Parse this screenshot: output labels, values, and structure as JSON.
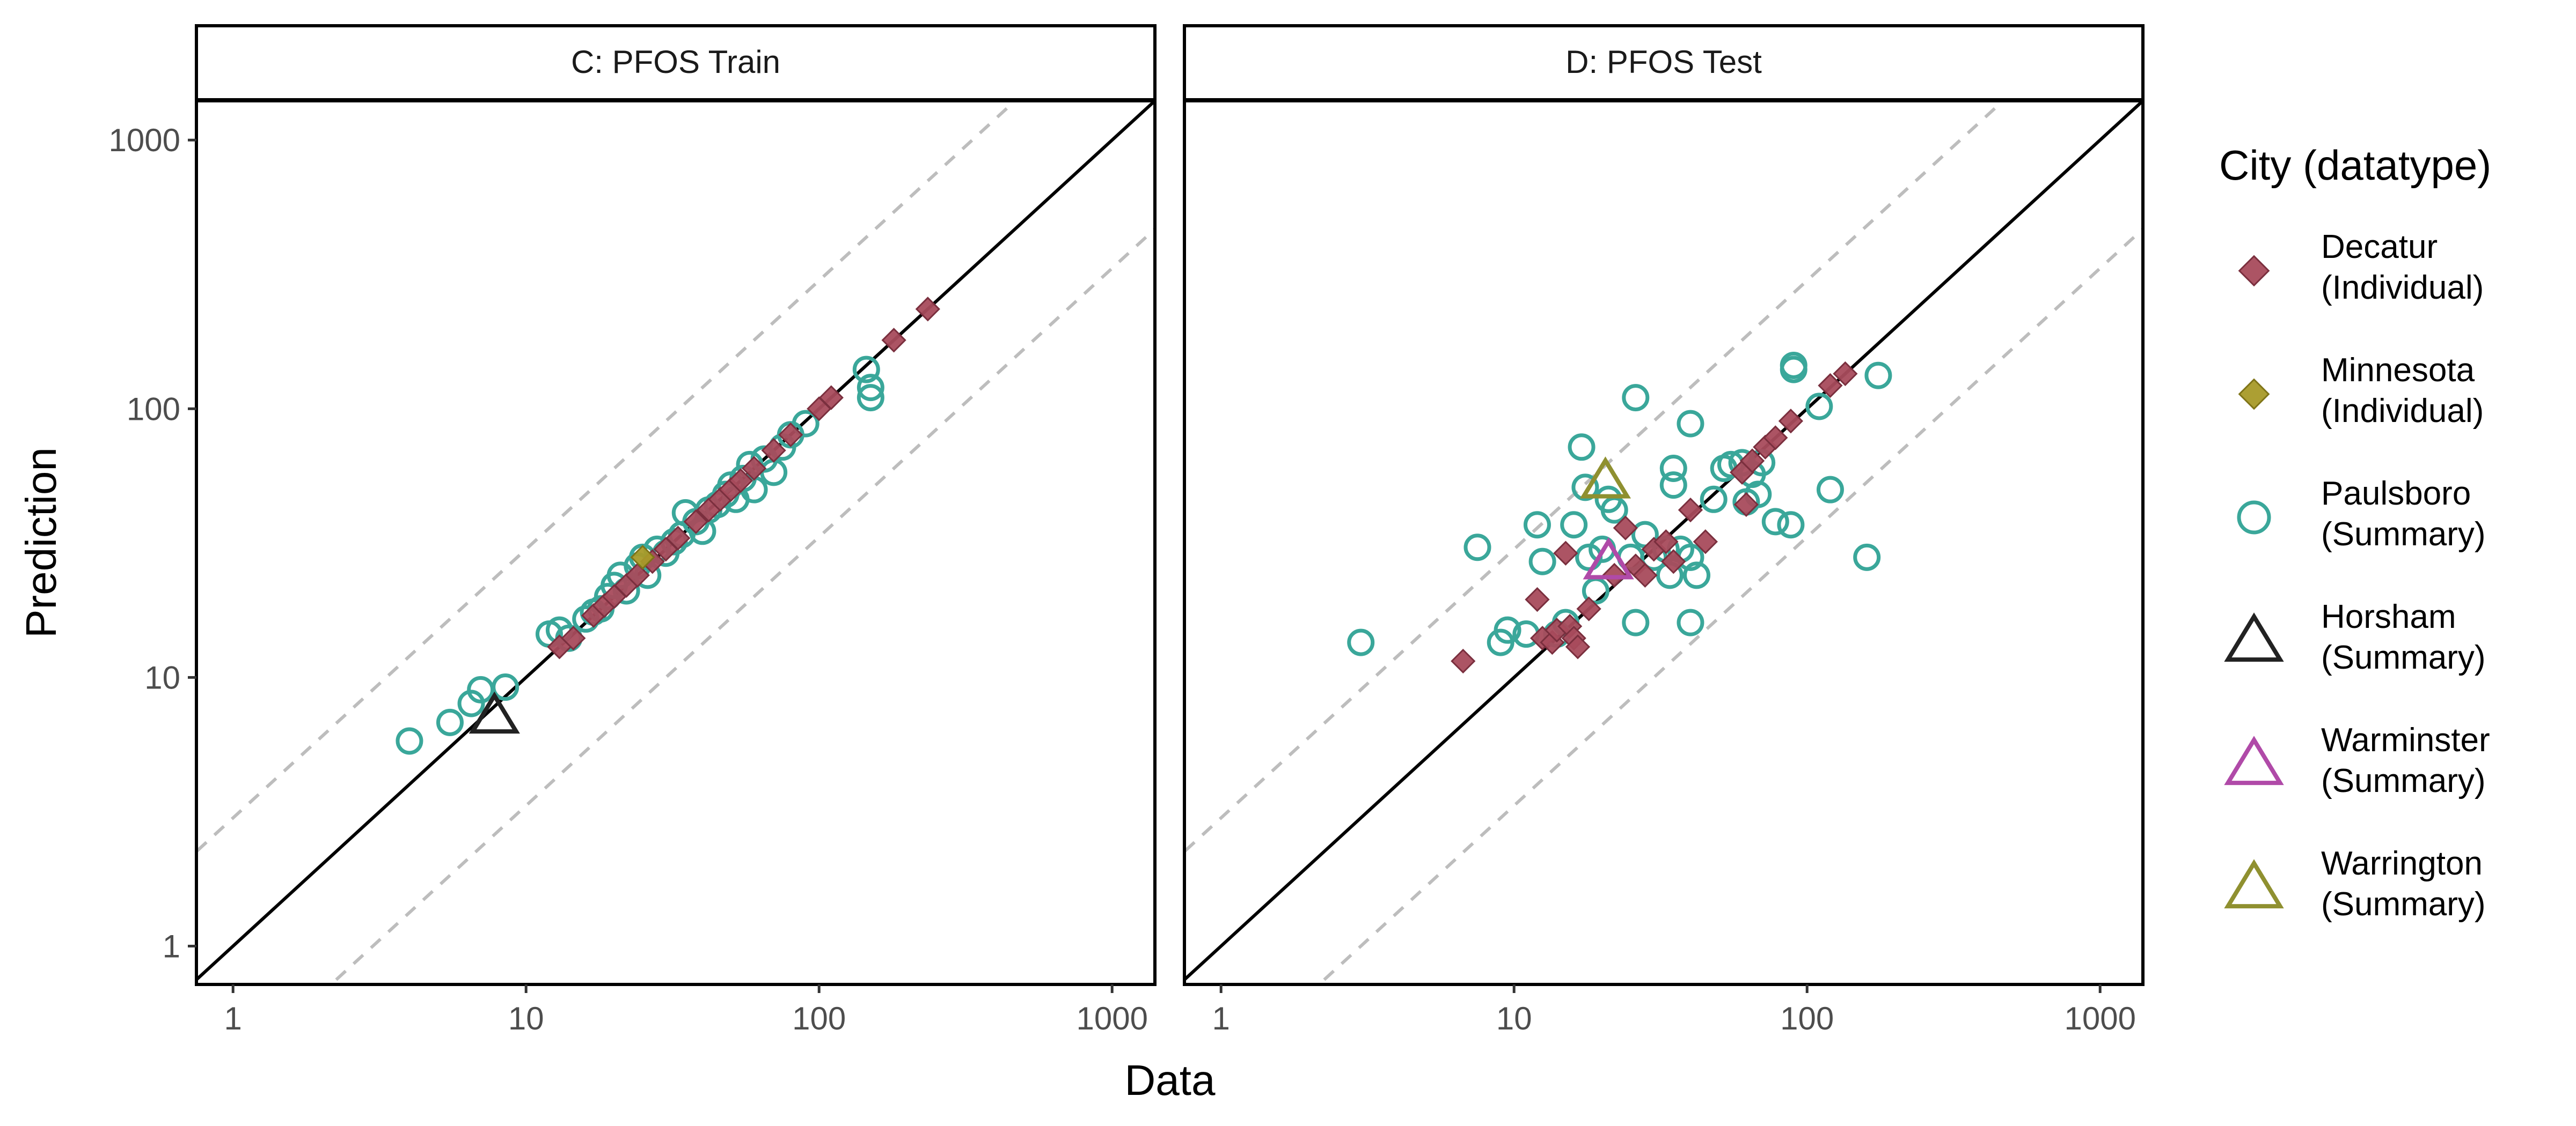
{
  "chart_data": {
    "type": "scatter",
    "xlabel": "Data",
    "ylabel": "Prediction",
    "xscale": "log10",
    "yscale": "log10",
    "xlim": [
      0.75,
      1400
    ],
    "ylim": [
      0.72,
      1400
    ],
    "x_ticks": [
      "1",
      "10",
      "100",
      "1000"
    ],
    "y_ticks": [
      "1",
      "10",
      "100",
      "1000"
    ],
    "reference_lines": [
      {
        "style": "solid",
        "color": "#000000",
        "factor": 1
      },
      {
        "style": "dashed",
        "color": "#bdbdbd",
        "factor": 3
      },
      {
        "style": "dashed",
        "color": "#bdbdbd",
        "factor": 0.3333
      }
    ],
    "legend": {
      "title": "City (datatype)",
      "position": "right",
      "entries": [
        {
          "key": "decatur",
          "label_line1": "Decatur",
          "label_line2": "(Individual)",
          "shape": "diamond",
          "color": "#a84b5c"
        },
        {
          "key": "minnesota",
          "label_line1": "Minnesota",
          "label_line2": "(Individual)",
          "shape": "diamond",
          "color": "#a89a28"
        },
        {
          "key": "paulsboro",
          "label_line1": "Paulsboro",
          "label_line2": "(Summary)",
          "shape": "circle",
          "color": "#3aa79a"
        },
        {
          "key": "horsham",
          "label_line1": "Horsham",
          "label_line2": "(Summary)",
          "shape": "triangle",
          "color": "#222222"
        },
        {
          "key": "warminster",
          "label_line1": "Warminster",
          "label_line2": "(Summary)",
          "shape": "triangle",
          "color": "#b04aa8"
        },
        {
          "key": "warrington",
          "label_line1": "Warrington",
          "label_line2": "(Summary)",
          "shape": "triangle",
          "color": "#8f9030"
        }
      ]
    },
    "panels": [
      {
        "title": "C: PFOS Train",
        "series": [
          {
            "key": "paulsboro",
            "points": [
              [
                4.0,
                5.8
              ],
              [
                5.5,
                6.8
              ],
              [
                6.5,
                8.0
              ],
              [
                7.0,
                9.0
              ],
              [
                8.5,
                9.2
              ],
              [
                12.0,
                14.5
              ],
              [
                13.0,
                15.0
              ],
              [
                14.0,
                14.0
              ],
              [
                16.0,
                16.5
              ],
              [
                17.0,
                17.5
              ],
              [
                18.0,
                18.0
              ],
              [
                19.0,
                20.0
              ],
              [
                20.0,
                22.0
              ],
              [
                21.0,
                24.0
              ],
              [
                22.0,
                21.0
              ],
              [
                24.0,
                26.0
              ],
              [
                25.0,
                28.0
              ],
              [
                26.0,
                24.0
              ],
              [
                28.0,
                30.0
              ],
              [
                30.0,
                29.0
              ],
              [
                32.0,
                32.0
              ],
              [
                34.0,
                34.0
              ],
              [
                35.0,
                41.0
              ],
              [
                38.0,
                38.0
              ],
              [
                40.0,
                35.0
              ],
              [
                42.0,
                42.0
              ],
              [
                45.0,
                44.0
              ],
              [
                48.0,
                48.0
              ],
              [
                50.0,
                52.0
              ],
              [
                52.0,
                46.0
              ],
              [
                55.0,
                55.0
              ],
              [
                58.0,
                62.0
              ],
              [
                60.0,
                50.0
              ],
              [
                65.0,
                65.0
              ],
              [
                70.0,
                58.0
              ],
              [
                75.0,
                72.0
              ],
              [
                80.0,
                80.0
              ],
              [
                90.0,
                88.0
              ],
              [
                145.0,
                140.0
              ],
              [
                150.0,
                120.0
              ],
              [
                150.0,
                110.0
              ]
            ]
          },
          {
            "key": "decatur",
            "points": [
              [
                13.0,
                13.0
              ],
              [
                14.5,
                14.0
              ],
              [
                17.0,
                17.0
              ],
              [
                18.5,
                18.5
              ],
              [
                20.0,
                20.0
              ],
              [
                22.0,
                22.0
              ],
              [
                24.0,
                24.0
              ],
              [
                27.0,
                27.0
              ],
              [
                30.0,
                30.0
              ],
              [
                33.0,
                33.0
              ],
              [
                38.0,
                38.0
              ],
              [
                42.0,
                42.0
              ],
              [
                46.0,
                46.0
              ],
              [
                50.0,
                50.0
              ],
              [
                54.0,
                54.0
              ],
              [
                60.0,
                60.0
              ],
              [
                70.0,
                70.0
              ],
              [
                80.0,
                80.0
              ],
              [
                100.0,
                100.0
              ],
              [
                110.0,
                110.0
              ],
              [
                180.0,
                180.0
              ],
              [
                235.0,
                235.0
              ]
            ]
          },
          {
            "key": "minnesota",
            "points": [
              [
                25.0,
                28.0
              ]
            ]
          },
          {
            "key": "horsham",
            "points": [
              [
                7.8,
                7.2
              ]
            ]
          }
        ]
      },
      {
        "title": "D: PFOS Test",
        "series": [
          {
            "key": "paulsboro",
            "points": [
              [
                3.0,
                13.5
              ],
              [
                7.5,
                30.5
              ],
              [
                9.0,
                13.5
              ],
              [
                9.5,
                15.0
              ],
              [
                11.0,
                14.5
              ],
              [
                12.0,
                37.0
              ],
              [
                12.5,
                27.0
              ],
              [
                14.0,
                14.5
              ],
              [
                15.0,
                16.0
              ],
              [
                16.0,
                37.0
              ],
              [
                17.0,
                72.0
              ],
              [
                17.5,
                51.0
              ],
              [
                18.0,
                28.0
              ],
              [
                19.0,
                21.0
              ],
              [
                20.0,
                30.0
              ],
              [
                21.0,
                46.0
              ],
              [
                22.0,
                42.0
              ],
              [
                25.0,
                28.0
              ],
              [
                26.0,
                16.0
              ],
              [
                26.0,
                110.0
              ],
              [
                28.0,
                34.0
              ],
              [
                30.0,
                28.0
              ],
              [
                33.0,
                30.0
              ],
              [
                34.0,
                24.0
              ],
              [
                35.0,
                60.0
              ],
              [
                35.0,
                52.0
              ],
              [
                37.0,
                30.0
              ],
              [
                40.0,
                16.0
              ],
              [
                40.0,
                28.0
              ],
              [
                40.0,
                88.0
              ],
              [
                42.0,
                24.0
              ],
              [
                48.0,
                46.0
              ],
              [
                52.0,
                60.0
              ],
              [
                55.0,
                62.0
              ],
              [
                60.0,
                63.0
              ],
              [
                62.0,
                45.0
              ],
              [
                65.0,
                57.0
              ],
              [
                68.0,
                48.0
              ],
              [
                70.0,
                63.0
              ],
              [
                78.0,
                38.0
              ],
              [
                88.0,
                37.0
              ],
              [
                90.0,
                145.0
              ],
              [
                90.0,
                140.0
              ],
              [
                110.0,
                102.0
              ],
              [
                120.0,
                50.0
              ],
              [
                160.0,
                28.0
              ],
              [
                175.0,
                133.0
              ]
            ]
          },
          {
            "key": "decatur",
            "points": [
              [
                6.7,
                11.5
              ],
              [
                12.0,
                19.5
              ],
              [
                12.5,
                14.0
              ],
              [
                13.5,
                13.5
              ],
              [
                14.0,
                15.0
              ],
              [
                15.0,
                29.0
              ],
              [
                15.5,
                15.5
              ],
              [
                16.0,
                14.0
              ],
              [
                16.5,
                13.0
              ],
              [
                18.0,
                18.0
              ],
              [
                22.0,
                24.0
              ],
              [
                24.0,
                36.0
              ],
              [
                26.0,
                26.0
              ],
              [
                28.0,
                24.0
              ],
              [
                30.0,
                30.0
              ],
              [
                33.0,
                32.0
              ],
              [
                35.0,
                27.0
              ],
              [
                40.0,
                42.0
              ],
              [
                45.0,
                32.0
              ],
              [
                60.0,
                58.0
              ],
              [
                62.0,
                44.0
              ],
              [
                65.0,
                64.0
              ],
              [
                72.0,
                72.0
              ],
              [
                78.0,
                78.0
              ],
              [
                88.0,
                90.0
              ],
              [
                120.0,
                122.0
              ],
              [
                135.0,
                135.0
              ]
            ]
          },
          {
            "key": "warminster",
            "points": [
              [
                21.0,
                27.0
              ]
            ]
          },
          {
            "key": "warrington",
            "points": [
              [
                20.5,
                54.0
              ]
            ]
          }
        ]
      }
    ]
  }
}
